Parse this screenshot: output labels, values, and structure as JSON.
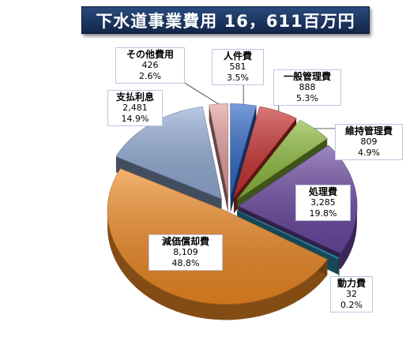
{
  "title": "下水道事業費用 16，611百万円",
  "chart_data": {
    "type": "pie",
    "title": "下水道事業費用 16，611百万円",
    "slices": [
      {
        "name": "人件費",
        "value": 581,
        "value_label": "581",
        "percent_label": "3.5%",
        "color": "#2e67c4"
      },
      {
        "name": "一般管理費",
        "value": 888,
        "value_label": "888",
        "percent_label": "5.3%",
        "color": "#c8302f"
      },
      {
        "name": "維持管理費",
        "value": 809,
        "value_label": "809",
        "percent_label": "4.9%",
        "color": "#8dbb3c"
      },
      {
        "name": "処理費",
        "value": 3285,
        "value_label": "3,285",
        "percent_label": "19.8%",
        "color": "#6a47a0"
      },
      {
        "name": "動力費",
        "value": 32,
        "value_label": "32",
        "percent_label": "0.2%",
        "color": "#2f9fc0"
      },
      {
        "name": "減価償却費",
        "value": 8109,
        "value_label": "8,109",
        "percent_label": "48.8%",
        "color": "#ef8a24"
      },
      {
        "name": "支払利息",
        "value": 2481,
        "value_label": "2,481",
        "percent_label": "14.9%",
        "color": "#93acd6"
      },
      {
        "name": "その他費用",
        "value": 426,
        "value_label": "426",
        "percent_label": "2.6%",
        "color": "#e39c9c"
      }
    ]
  }
}
